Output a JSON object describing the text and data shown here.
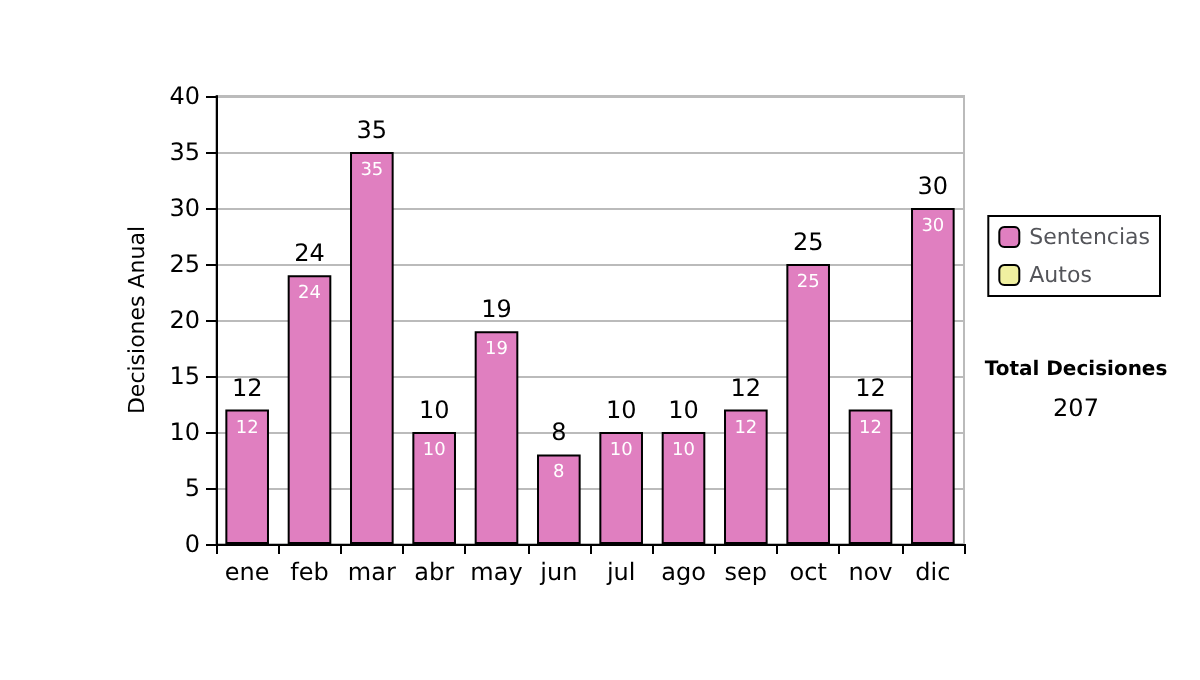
{
  "chart_data": {
    "type": "bar",
    "ylabel": "Decisiones Anual",
    "categories": [
      "ene",
      "feb",
      "mar",
      "abr",
      "may",
      "jun",
      "jul",
      "ago",
      "sep",
      "oct",
      "nov",
      "dic"
    ],
    "series": [
      {
        "name": "Sentencias",
        "color": "#e07fc0",
        "values": [
          12,
          24,
          35,
          10,
          19,
          8,
          10,
          10,
          12,
          25,
          12,
          30
        ],
        "value_labels": [
          "12",
          "24",
          "35",
          "10",
          "19",
          "8",
          "10",
          "10",
          "12",
          "25",
          "12",
          "30"
        ]
      },
      {
        "name": "Autos",
        "color": "#f0f0a0",
        "values": [
          0,
          0,
          0,
          0,
          0,
          0,
          0,
          0,
          0,
          0,
          0,
          0
        ]
      }
    ],
    "stacked": true,
    "totals": [
      "12",
      "24",
      "35",
      "10",
      "19",
      "8",
      "10",
      "10",
      "12",
      "25",
      "12",
      "30"
    ],
    "ylim": [
      0,
      40
    ],
    "yticks": [
      0,
      5,
      10,
      15,
      20,
      25,
      30,
      35,
      40
    ],
    "grid": "y",
    "legend": "right",
    "annotations": [
      "Total Decisiones",
      "207"
    ]
  }
}
